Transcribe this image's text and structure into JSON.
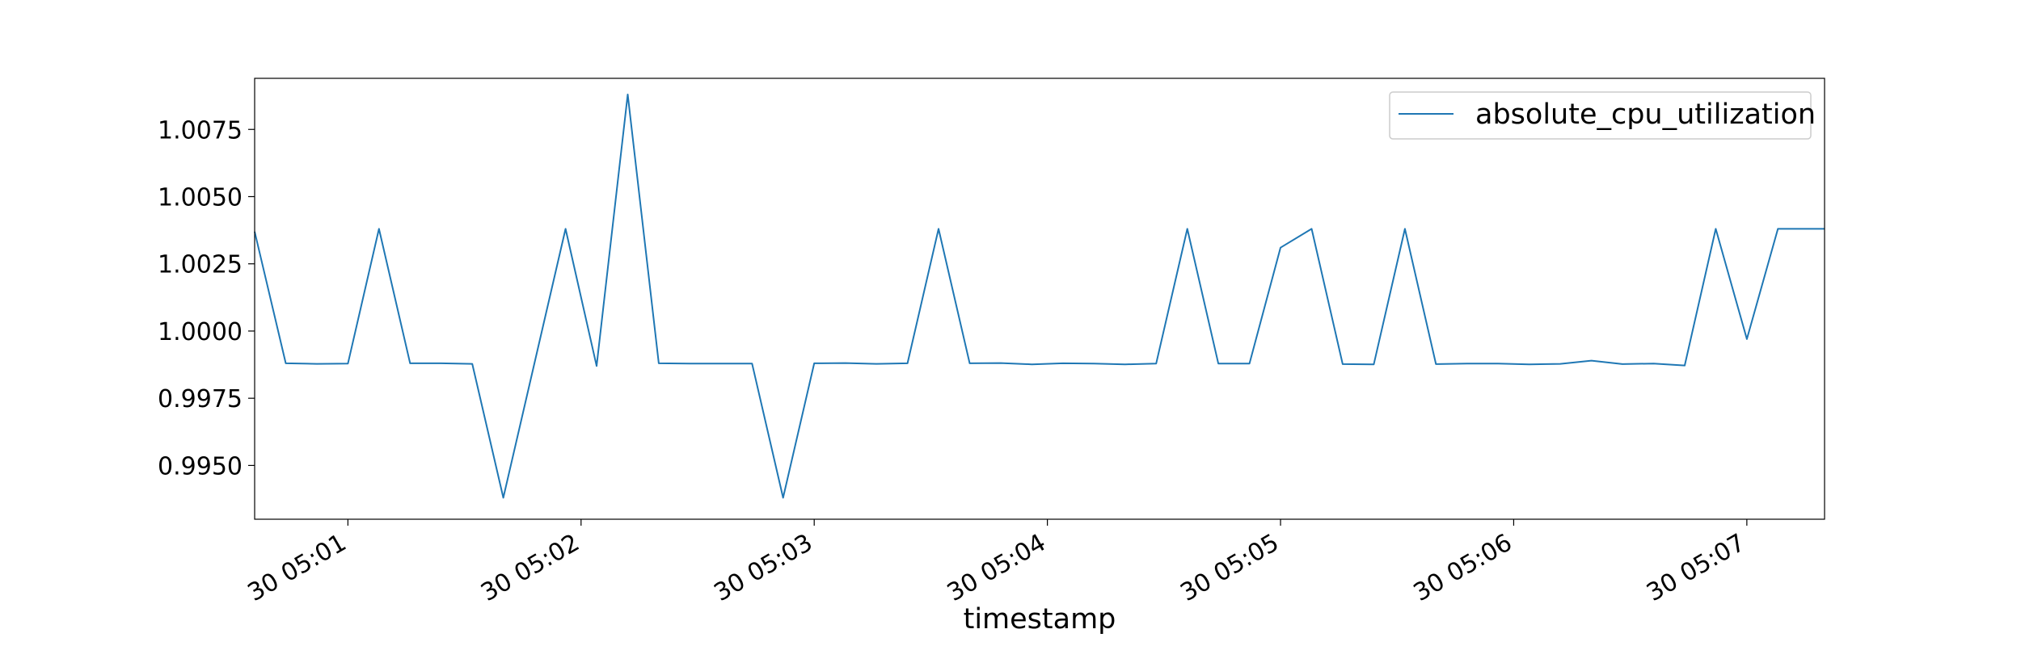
{
  "chart_data": {
    "type": "line",
    "title": "",
    "xlabel": "timestamp",
    "ylabel": "",
    "x_ticks": [
      {
        "time": "05:01",
        "label": "30 05:01"
      },
      {
        "time": "05:02",
        "label": "30 05:02"
      },
      {
        "time": "05:03",
        "label": "30 05:03"
      },
      {
        "time": "05:04",
        "label": "30 05:04"
      },
      {
        "time": "05:05",
        "label": "30 05:05"
      },
      {
        "time": "05:06",
        "label": "30 05:06"
      },
      {
        "time": "05:07",
        "label": "30 05:07"
      }
    ],
    "y_ticks": [
      0.995,
      0.9975,
      1.0,
      1.0025,
      1.005,
      1.0075
    ],
    "y_tick_labels": [
      "0.9950",
      "0.9975",
      "1.0000",
      "1.0025",
      "1.0050",
      "1.0075"
    ],
    "xlim": [
      "05:00:36",
      "05:07:20"
    ],
    "ylim": [
      0.993,
      1.0094
    ],
    "grid": false,
    "legend_position": "upper right",
    "series": [
      {
        "name": "absolute_cpu_utilization",
        "color": "#1f77b4",
        "x": [
          "05:00:36",
          "05:00:44",
          "05:00:52",
          "05:01:00",
          "05:01:08",
          "05:01:16",
          "05:01:24",
          "05:01:32",
          "05:01:40",
          "05:01:48",
          "05:01:56",
          "05:02:04",
          "05:02:12",
          "05:02:20",
          "05:02:28",
          "05:02:36",
          "05:02:44",
          "05:02:52",
          "05:03:00",
          "05:03:08",
          "05:03:16",
          "05:03:24",
          "05:03:32",
          "05:03:40",
          "05:03:48",
          "05:03:56",
          "05:04:04",
          "05:04:12",
          "05:04:20",
          "05:04:28",
          "05:04:36",
          "05:04:44",
          "05:04:52",
          "05:05:00",
          "05:05:08",
          "05:05:16",
          "05:05:24",
          "05:05:32",
          "05:05:40",
          "05:05:48",
          "05:05:56",
          "05:06:04",
          "05:06:12",
          "05:06:20",
          "05:06:28",
          "05:06:36",
          "05:06:44",
          "05:06:52",
          "05:07:00",
          "05:07:08",
          "05:07:16",
          "05:07:20"
        ],
        "values": [
          1.0037,
          0.9988,
          0.99878,
          0.99879,
          1.0038,
          0.9988,
          0.9988,
          0.99878,
          0.9938,
          0.9988,
          1.0038,
          0.9987,
          1.0088,
          0.9988,
          0.99879,
          0.99879,
          0.99879,
          0.9938,
          0.9988,
          0.99881,
          0.99878,
          0.9988,
          1.0038,
          0.9988,
          0.99881,
          0.99876,
          0.9988,
          0.99879,
          0.99876,
          0.99879,
          1.0038,
          0.99879,
          0.99879,
          1.0031,
          1.0038,
          0.99877,
          0.99876,
          1.0038,
          0.99877,
          0.99879,
          0.99879,
          0.99876,
          0.99878,
          0.9989,
          0.99877,
          0.99879,
          0.99872,
          1.0038,
          0.9997,
          1.0038,
          1.0038,
          1.0038
        ]
      }
    ]
  }
}
